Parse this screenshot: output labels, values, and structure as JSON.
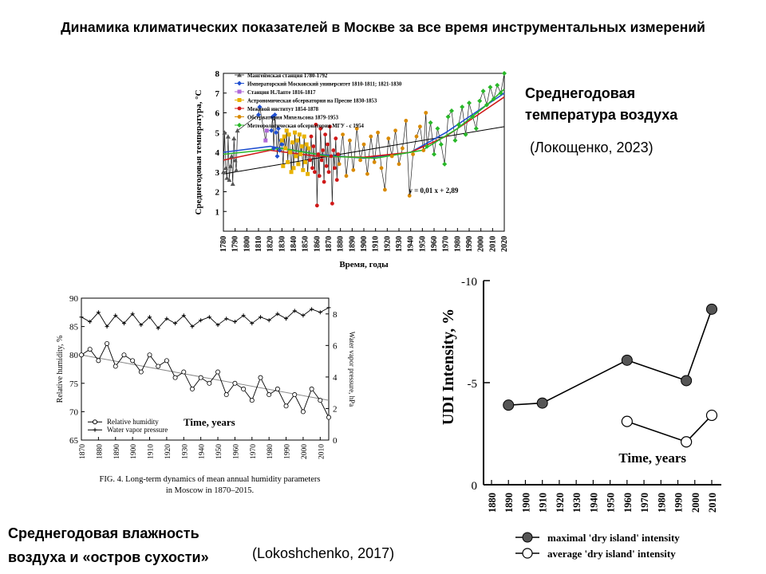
{
  "slide": {
    "title": "Динамика климатических показателей в Москве за все время инструментальных измерений",
    "temperature_caption_line1": "Среднегодовая",
    "temperature_caption_line2": "температура воздуха",
    "temperature_citation": "(Локощенко, 2023)",
    "humidity_caption_line1": "Среднегодовая влажность",
    "humidity_caption_line2": "воздуха и «остров сухости»",
    "humidity_citation": "(Lokoshchenko, 2017)"
  },
  "chart_data": [
    {
      "type": "line",
      "title": "",
      "xlabel": "Время, годы",
      "ylabel": "Среднегодовая температура, °C",
      "xlim": [
        1780,
        2020
      ],
      "ylim": [
        0,
        8
      ],
      "x_ticks": [
        1780,
        1790,
        1800,
        1810,
        1820,
        1830,
        1840,
        1850,
        1860,
        1870,
        1880,
        1890,
        1900,
        1910,
        1920,
        1930,
        1940,
        1950,
        1960,
        1970,
        1980,
        1990,
        2000,
        2010,
        2020
      ],
      "y_ticks": [
        1,
        2,
        3,
        4,
        5,
        6,
        7,
        8
      ],
      "legend_position": "top-left",
      "legend": [
        {
          "name": "Мангеймская станция 1780-1792",
          "color": "#555555",
          "marker": "triangle"
        },
        {
          "name": "Императорский Московский университет 1810-1811; 1821-1830",
          "color": "#1f4fd1",
          "marker": "diamond"
        },
        {
          "name": "Станция Н.Лапте 1816-1817",
          "color": "#b06ad9",
          "marker": "square"
        },
        {
          "name": "Астрономическая обсерватория на Пресне 1830-1853",
          "color": "#e8b200",
          "marker": "square"
        },
        {
          "name": "Межевой институт 1854-1878",
          "color": "#d01818",
          "marker": "circle"
        },
        {
          "name": "Обсерватория Михельсона 1879-1953",
          "color": "#d98a00",
          "marker": "circle"
        },
        {
          "name": "Метеорологическая обсерватория МГУ - с 1954",
          "color": "#28b828",
          "marker": "diamond"
        }
      ],
      "annotation": "y = 0,01 x + 2,89",
      "trend": {
        "slope": 0.01,
        "intercept": 2.89,
        "x_origin": 1779
      },
      "series": [
        {
          "name": "Мангеймская станция 1780-1792",
          "x": [
            1780,
            1781,
            1782,
            1783,
            1784,
            1785,
            1786,
            1787,
            1788,
            1789,
            1790,
            1791,
            1792
          ],
          "y": [
            3.0,
            5.0,
            3.2,
            2.7,
            4.8,
            2.6,
            3.3,
            3.8,
            2.4,
            4.7,
            3.6,
            3.1,
            5.1
          ]
        },
        {
          "name": "Императорский Московский университет 1810-1811; 1821-1830",
          "x": [
            1810,
            1811,
            1821,
            1822,
            1823,
            1824,
            1825,
            1826,
            1827,
            1828,
            1829,
            1830
          ],
          "y": [
            5.9,
            6.3,
            5.1,
            5.8,
            4.2,
            5.9,
            5.0,
            3.8,
            5.2,
            4.1,
            4.6,
            4.4
          ]
        },
        {
          "name": "Станция Н.Лапте 1816-1817",
          "x": [
            1816,
            1817
          ],
          "y": [
            4.6,
            5.1
          ]
        },
        {
          "name": "Астрономическая обсерватория на Пресне 1830-1853",
          "x": [
            1830,
            1831,
            1832,
            1833,
            1834,
            1835,
            1836,
            1837,
            1838,
            1839,
            1840,
            1841,
            1842,
            1843,
            1844,
            1845,
            1846,
            1847,
            1848,
            1849,
            1850,
            1851,
            1852,
            1853
          ],
          "y": [
            4.6,
            3.3,
            4.8,
            4.2,
            5.1,
            3.5,
            4.9,
            4.0,
            3.0,
            4.5,
            3.2,
            5.0,
            3.8,
            4.6,
            3.4,
            4.9,
            3.9,
            4.3,
            3.1,
            4.8,
            3.5,
            4.4,
            2.9,
            4.2
          ]
        },
        {
          "name": "Межевой институт 1854-1878",
          "x": [
            1854,
            1855,
            1856,
            1857,
            1858,
            1859,
            1860,
            1861,
            1862,
            1863,
            1864,
            1865,
            1866,
            1867,
            1868,
            1869,
            1870,
            1871,
            1872,
            1873,
            1874,
            1875,
            1876,
            1877,
            1878
          ],
          "y": [
            3.6,
            4.8,
            3.2,
            4.3,
            3.0,
            5.4,
            1.3,
            3.9,
            2.8,
            5.2,
            3.6,
            4.1,
            2.5,
            4.9,
            3.3,
            4.4,
            3.0,
            5.3,
            3.8,
            1.4,
            4.1,
            3.2,
            4.7,
            2.6,
            3.9
          ]
        },
        {
          "name": "Обсерватория Михельсона 1879-1953",
          "x": [
            1879,
            1882,
            1885,
            1888,
            1891,
            1894,
            1897,
            1900,
            1903,
            1906,
            1909,
            1912,
            1915,
            1918,
            1921,
            1924,
            1927,
            1930,
            1933,
            1936,
            1939,
            1942,
            1945,
            1948,
            1951,
            1953
          ],
          "y": [
            3.4,
            4.9,
            2.8,
            4.6,
            3.1,
            5.2,
            3.6,
            4.4,
            2.9,
            4.8,
            3.5,
            5.0,
            3.2,
            2.1,
            4.7,
            3.8,
            5.1,
            3.4,
            4.2,
            5.6,
            1.8,
            3.9,
            4.8,
            5.3,
            4.1,
            6.0
          ]
        },
        {
          "name": "Метеорологическая обсерватория МГУ - с 1954",
          "x": [
            1954,
            1957,
            1960,
            1963,
            1966,
            1969,
            1972,
            1975,
            1978,
            1981,
            1984,
            1987,
            1990,
            1993,
            1996,
            1999,
            2002,
            2005,
            2008,
            2011,
            2014,
            2017,
            2020
          ],
          "y": [
            4.3,
            5.5,
            3.9,
            5.2,
            4.4,
            3.4,
            5.8,
            6.1,
            4.6,
            5.4,
            6.3,
            4.9,
            6.5,
            5.8,
            5.2,
            6.6,
            7.1,
            6.4,
            7.3,
            6.7,
            7.4,
            7.0,
            8.0
          ]
        }
      ]
    },
    {
      "type": "line",
      "title": "",
      "caption": "FIG. 4. Long-term dynamics of mean annual humidity parameters in Moscow in 1870–2015.",
      "xlabel": "Time, years",
      "ylabel": "Relative humidity, %",
      "y2label": "Water vapor pressure, hPa",
      "xlim": [
        1870,
        2015
      ],
      "ylim": [
        65,
        90
      ],
      "y2lim": [
        0,
        9
      ],
      "x_ticks": [
        1870,
        1880,
        1890,
        1900,
        1910,
        1920,
        1930,
        1940,
        1950,
        1960,
        1970,
        1980,
        1990,
        2000,
        2010
      ],
      "y_ticks": [
        65,
        70,
        75,
        80,
        85,
        90
      ],
      "y2_ticks": [
        0,
        2,
        4,
        6,
        8
      ],
      "legend_position": "bottom-left",
      "series": [
        {
          "name": "Relative humidity",
          "axis": "left",
          "x": [
            1870,
            1875,
            1880,
            1885,
            1890,
            1895,
            1900,
            1905,
            1910,
            1915,
            1920,
            1925,
            1930,
            1935,
            1940,
            1945,
            1950,
            1955,
            1960,
            1965,
            1970,
            1975,
            1980,
            1985,
            1990,
            1995,
            2000,
            2005,
            2010,
            2015
          ],
          "y": [
            80,
            81,
            79,
            82,
            78,
            80,
            79,
            77,
            80,
            78,
            79,
            76,
            77,
            74,
            76,
            75,
            77,
            73,
            75,
            74,
            72,
            76,
            73,
            74,
            71,
            73,
            70,
            74,
            72,
            69
          ]
        },
        {
          "name": "Water vapor pressure",
          "axis": "right",
          "x": [
            1870,
            1875,
            1880,
            1885,
            1890,
            1895,
            1900,
            1905,
            1910,
            1915,
            1920,
            1925,
            1930,
            1935,
            1940,
            1945,
            1950,
            1955,
            1960,
            1965,
            1970,
            1975,
            1980,
            1985,
            1990,
            1995,
            2000,
            2005,
            2010,
            2015
          ],
          "y": [
            7.8,
            7.5,
            8.1,
            7.2,
            7.9,
            7.4,
            8.0,
            7.3,
            7.8,
            7.1,
            7.7,
            7.4,
            7.9,
            7.2,
            7.6,
            7.8,
            7.3,
            7.7,
            7.5,
            7.9,
            7.4,
            7.8,
            7.6,
            8.0,
            7.7,
            8.2,
            7.9,
            8.3,
            8.1,
            8.4
          ]
        }
      ]
    },
    {
      "type": "line",
      "title": "",
      "xlabel": "Time, years",
      "ylabel": "UDI Intensity, %",
      "xlim": [
        1880,
        2010
      ],
      "ylim": [
        -10,
        0
      ],
      "y_inverted": true,
      "x_ticks": [
        1880,
        1890,
        1900,
        1910,
        1920,
        1930,
        1940,
        1950,
        1960,
        1970,
        1980,
        1990,
        2000,
        2010
      ],
      "y_ticks": [
        -10,
        -5,
        0
      ],
      "legend_position": "bottom",
      "series": [
        {
          "name": "maximal 'dry island' intensity",
          "x": [
            1890,
            1910,
            1960,
            1995,
            2010
          ],
          "y": [
            -3.9,
            -4.0,
            -6.1,
            -5.1,
            -8.6
          ]
        },
        {
          "name": "average 'dry island' intensity",
          "x": [
            1960,
            1995,
            2010
          ],
          "y": [
            -3.1,
            -2.1,
            -3.4
          ]
        }
      ]
    }
  ]
}
